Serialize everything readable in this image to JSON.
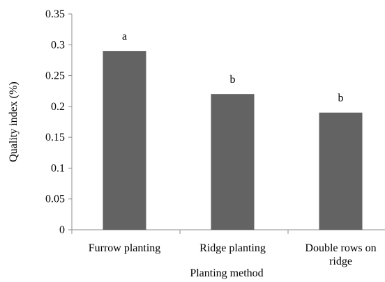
{
  "chart_data": {
    "type": "bar",
    "categories": [
      "Furrow planting",
      "Ridge planting",
      "Double rows on ridge"
    ],
    "category_label_lines": [
      [
        "Furrow planting"
      ],
      [
        "Ridge planting"
      ],
      [
        "Double rows on",
        "ridge"
      ]
    ],
    "values": [
      0.29,
      0.22,
      0.19
    ],
    "significance_letters": [
      "a",
      "b",
      "b"
    ],
    "xlabel": "Planting method",
    "ylabel": "Quality index (%)",
    "ylim": [
      0,
      0.35
    ],
    "yticks": [
      0,
      0.05,
      0.1,
      0.15,
      0.2,
      0.25,
      0.3,
      0.35
    ],
    "ytick_labels": [
      "0",
      "0.05",
      "0.1",
      "0.15",
      "0.2",
      "0.25",
      "0.3",
      "0.35"
    ],
    "grid": false,
    "legend": "none",
    "bar_color": "#636363"
  }
}
